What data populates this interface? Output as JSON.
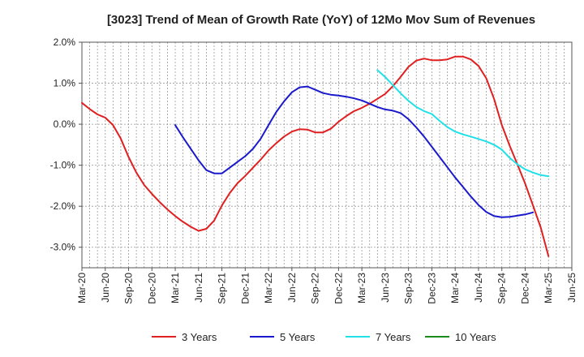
{
  "chart_data": {
    "type": "line",
    "title": "[3023]  Trend of Mean of Growth Rate (YoY) of 12Mo Mov Sum of Revenues",
    "xlabel": "",
    "ylabel": "",
    "ylim": [
      -3.5,
      2.0
    ],
    "y_ticks": [
      2.0,
      1.0,
      0.0,
      -1.0,
      -2.0,
      -3.0
    ],
    "y_tick_labels": [
      "2.0%",
      "1.0%",
      "0.0%",
      "-1.0%",
      "-2.0%",
      "-3.0%"
    ],
    "x_range": [
      0,
      63
    ],
    "x_ticks": [
      0,
      3,
      6,
      9,
      12,
      15,
      18,
      21,
      24,
      27,
      30,
      33,
      36,
      39,
      42,
      45,
      48,
      51,
      54,
      57,
      60,
      63
    ],
    "x_tick_labels": [
      "Mar-20",
      "Jun-20",
      "Sep-20",
      "Dec-20",
      "Mar-21",
      "Jun-21",
      "Sep-21",
      "Dec-21",
      "Mar-22",
      "Jun-22",
      "Sep-22",
      "Dec-22",
      "Mar-23",
      "Jun-23",
      "Sep-23",
      "Dec-23",
      "Mar-24",
      "Jun-24",
      "Sep-24",
      "Dec-24",
      "Mar-25",
      "Jun-25"
    ],
    "grid": true,
    "legend_position": "bottom",
    "series": [
      {
        "name": "3 Years",
        "color": "#e02020",
        "x_start": 0,
        "values": [
          0.52,
          0.37,
          0.24,
          0.16,
          -0.02,
          -0.35,
          -0.8,
          -1.18,
          -1.48,
          -1.7,
          -1.9,
          -2.08,
          -2.24,
          -2.38,
          -2.5,
          -2.6,
          -2.55,
          -2.35,
          -1.98,
          -1.68,
          -1.44,
          -1.26,
          -1.06,
          -0.86,
          -0.64,
          -0.46,
          -0.3,
          -0.18,
          -0.12,
          -0.13,
          -0.2,
          -0.2,
          -0.11,
          0.06,
          0.2,
          0.32,
          0.4,
          0.5,
          0.62,
          0.74,
          0.93,
          1.16,
          1.4,
          1.55,
          1.6,
          1.56,
          1.56,
          1.58,
          1.65,
          1.65,
          1.58,
          1.42,
          1.12,
          0.62,
          -0.02,
          -0.52,
          -0.98,
          -1.45,
          -1.98,
          -2.52,
          -3.22
        ]
      },
      {
        "name": "5 Years",
        "color": "#1a1acc",
        "x_start": 12,
        "values": [
          -0.02,
          -0.32,
          -0.6,
          -0.88,
          -1.12,
          -1.2,
          -1.2,
          -1.06,
          -0.92,
          -0.78,
          -0.6,
          -0.35,
          -0.02,
          0.3,
          0.56,
          0.78,
          0.9,
          0.92,
          0.84,
          0.76,
          0.72,
          0.7,
          0.67,
          0.63,
          0.58,
          0.5,
          0.42,
          0.36,
          0.33,
          0.27,
          0.12,
          -0.08,
          -0.3,
          -0.55,
          -0.8,
          -1.05,
          -1.3,
          -1.53,
          -1.76,
          -1.97,
          -2.14,
          -2.24,
          -2.27,
          -2.26,
          -2.23,
          -2.2,
          -2.15
        ]
      },
      {
        "name": "7 Years",
        "color": "#22e0e8",
        "x_start": 38,
        "values": [
          1.32,
          1.15,
          0.95,
          0.75,
          0.57,
          0.42,
          0.32,
          0.25,
          0.08,
          -0.07,
          -0.18,
          -0.25,
          -0.3,
          -0.36,
          -0.42,
          -0.5,
          -0.62,
          -0.82,
          -0.98,
          -1.1,
          -1.18,
          -1.24,
          -1.27
        ]
      },
      {
        "name": "10 Years",
        "color": "#1a8a1a",
        "x_start": 0,
        "values": []
      }
    ]
  }
}
